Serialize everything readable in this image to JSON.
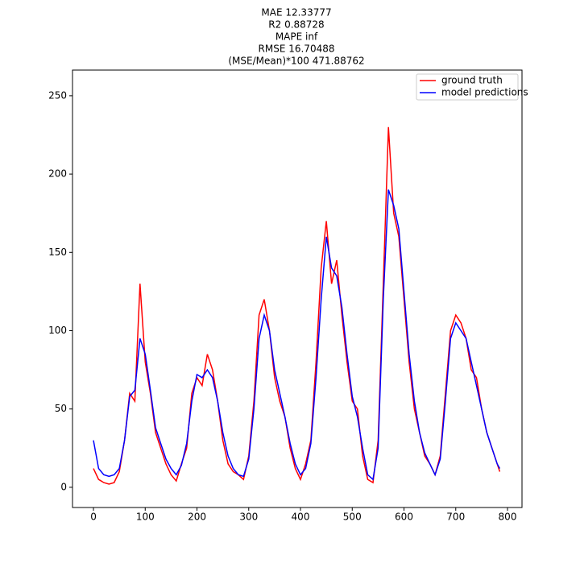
{
  "chart_data": {
    "type": "line",
    "title_lines": [
      "MAE 12.33777",
      "R2 0.88728",
      "MAPE inf",
      "RMSE 16.70488",
      "(MSE/Mean)*100 471.88762"
    ],
    "x": [
      0,
      10,
      20,
      30,
      40,
      50,
      60,
      70,
      80,
      90,
      100,
      110,
      120,
      130,
      140,
      150,
      160,
      170,
      180,
      190,
      200,
      210,
      220,
      230,
      240,
      250,
      260,
      270,
      280,
      290,
      300,
      310,
      320,
      330,
      340,
      350,
      360,
      370,
      380,
      390,
      400,
      410,
      420,
      430,
      440,
      450,
      460,
      470,
      480,
      490,
      500,
      510,
      520,
      530,
      540,
      550,
      560,
      570,
      580,
      590,
      600,
      610,
      620,
      630,
      640,
      650,
      660,
      670,
      680,
      690,
      700,
      710,
      720,
      730,
      740,
      750,
      760,
      770,
      780,
      785
    ],
    "series": [
      {
        "name": "ground truth",
        "color": "#ff0000",
        "values": [
          12,
          5,
          3,
          2,
          3,
          10,
          30,
          60,
          55,
          130,
          80,
          60,
          35,
          25,
          15,
          8,
          4,
          15,
          25,
          60,
          70,
          65,
          85,
          75,
          55,
          30,
          15,
          10,
          8,
          5,
          20,
          55,
          110,
          120,
          100,
          70,
          55,
          45,
          25,
          12,
          5,
          15,
          30,
          80,
          140,
          170,
          130,
          145,
          110,
          80,
          55,
          50,
          20,
          5,
          3,
          30,
          130,
          230,
          175,
          160,
          120,
          80,
          50,
          35,
          20,
          15,
          8,
          20,
          60,
          100,
          110,
          105,
          95,
          75,
          70,
          50,
          35,
          25,
          15,
          10
        ]
      },
      {
        "name": "model predictions",
        "color": "#0000ff",
        "values": [
          30,
          12,
          8,
          7,
          8,
          12,
          30,
          58,
          62,
          95,
          85,
          62,
          38,
          28,
          18,
          12,
          8,
          14,
          28,
          55,
          72,
          70,
          75,
          70,
          55,
          35,
          20,
          12,
          8,
          7,
          18,
          50,
          95,
          110,
          100,
          75,
          60,
          45,
          28,
          15,
          8,
          12,
          28,
          70,
          120,
          160,
          140,
          135,
          115,
          85,
          58,
          45,
          25,
          8,
          5,
          25,
          120,
          190,
          180,
          165,
          125,
          85,
          55,
          35,
          22,
          15,
          8,
          18,
          55,
          95,
          105,
          100,
          95,
          80,
          65,
          50,
          35,
          25,
          15,
          12
        ]
      }
    ],
    "xlim": [
      -40.5,
      828
    ],
    "ylim": [
      -12.9,
      266.4
    ],
    "xticks": [
      0,
      100,
      200,
      300,
      400,
      500,
      600,
      700,
      800
    ],
    "yticks": [
      0,
      50,
      100,
      150,
      200,
      250
    ],
    "legend": "upper right"
  }
}
